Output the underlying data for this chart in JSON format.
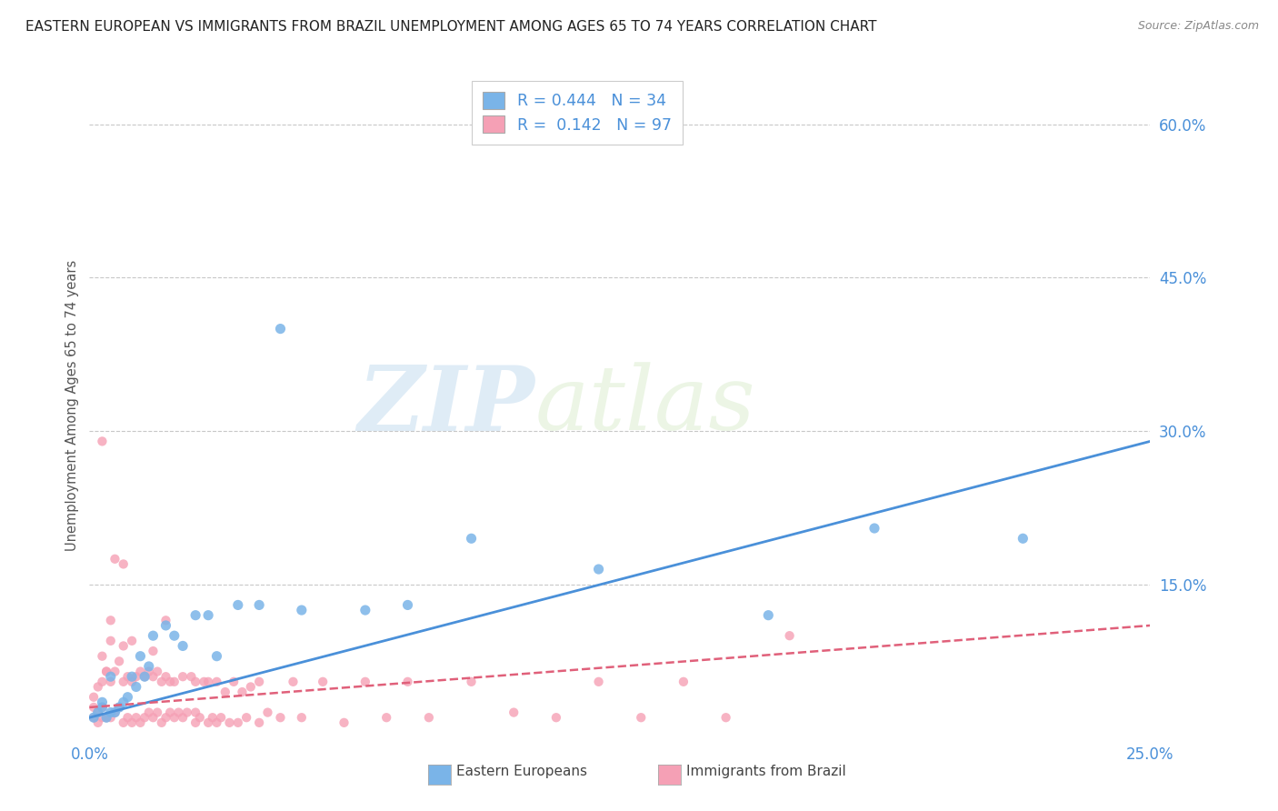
{
  "title": "EASTERN EUROPEAN VS IMMIGRANTS FROM BRAZIL UNEMPLOYMENT AMONG AGES 65 TO 74 YEARS CORRELATION CHART",
  "source": "Source: ZipAtlas.com",
  "ylabel": "Unemployment Among Ages 65 to 74 years",
  "xlim": [
    0.0,
    0.25
  ],
  "ylim": [
    0.0,
    0.65
  ],
  "xticklabels": [
    "0.0%",
    "25.0%"
  ],
  "yticklabels": [
    "15.0%",
    "30.0%",
    "45.0%",
    "60.0%"
  ],
  "ytick_positions": [
    0.15,
    0.3,
    0.45,
    0.6
  ],
  "grid_color": "#c8c8c8",
  "background_color": "#ffffff",
  "watermark_lines": [
    "ZIP",
    "atlas"
  ],
  "blue_color": "#7ab4e8",
  "blue_line_color": "#4a90d9",
  "pink_color": "#f5a0b5",
  "pink_line_color": "#e0607a",
  "tick_color": "#4a90d9",
  "title_color": "#222222",
  "source_color": "#888888",
  "R_blue": 0.444,
  "N_blue": 34,
  "R_pink": 0.142,
  "N_pink": 97,
  "blue_x": [
    0.001,
    0.002,
    0.003,
    0.003,
    0.004,
    0.005,
    0.005,
    0.006,
    0.007,
    0.008,
    0.009,
    0.01,
    0.011,
    0.012,
    0.013,
    0.014,
    0.015,
    0.018,
    0.02,
    0.022,
    0.025,
    0.028,
    0.03,
    0.035,
    0.04,
    0.045,
    0.05,
    0.065,
    0.075,
    0.09,
    0.12,
    0.16,
    0.185,
    0.22
  ],
  "blue_y": [
    0.02,
    0.025,
    0.03,
    0.035,
    0.02,
    0.025,
    0.06,
    0.025,
    0.03,
    0.035,
    0.04,
    0.06,
    0.05,
    0.08,
    0.06,
    0.07,
    0.1,
    0.11,
    0.1,
    0.09,
    0.12,
    0.12,
    0.08,
    0.13,
    0.13,
    0.4,
    0.125,
    0.125,
    0.13,
    0.195,
    0.165,
    0.12,
    0.205,
    0.195
  ],
  "pink_x": [
    0.001,
    0.001,
    0.001,
    0.002,
    0.002,
    0.002,
    0.003,
    0.003,
    0.003,
    0.003,
    0.004,
    0.004,
    0.005,
    0.005,
    0.005,
    0.006,
    0.006,
    0.006,
    0.007,
    0.007,
    0.008,
    0.008,
    0.008,
    0.009,
    0.009,
    0.01,
    0.01,
    0.01,
    0.011,
    0.011,
    0.012,
    0.012,
    0.013,
    0.013,
    0.014,
    0.014,
    0.015,
    0.015,
    0.016,
    0.016,
    0.017,
    0.017,
    0.018,
    0.018,
    0.019,
    0.019,
    0.02,
    0.02,
    0.021,
    0.022,
    0.022,
    0.023,
    0.024,
    0.025,
    0.025,
    0.026,
    0.027,
    0.028,
    0.028,
    0.029,
    0.03,
    0.03,
    0.031,
    0.032,
    0.033,
    0.034,
    0.035,
    0.036,
    0.037,
    0.038,
    0.04,
    0.04,
    0.042,
    0.045,
    0.048,
    0.05,
    0.055,
    0.06,
    0.065,
    0.07,
    0.075,
    0.08,
    0.09,
    0.1,
    0.11,
    0.12,
    0.13,
    0.14,
    0.15,
    0.165,
    0.003,
    0.004,
    0.005,
    0.008,
    0.015,
    0.018,
    0.025
  ],
  "pink_y": [
    0.02,
    0.03,
    0.04,
    0.015,
    0.025,
    0.05,
    0.02,
    0.03,
    0.055,
    0.08,
    0.02,
    0.065,
    0.02,
    0.055,
    0.095,
    0.025,
    0.065,
    0.175,
    0.03,
    0.075,
    0.015,
    0.055,
    0.09,
    0.02,
    0.06,
    0.015,
    0.055,
    0.095,
    0.02,
    0.06,
    0.015,
    0.065,
    0.02,
    0.06,
    0.025,
    0.065,
    0.02,
    0.06,
    0.025,
    0.065,
    0.015,
    0.055,
    0.02,
    0.06,
    0.025,
    0.055,
    0.02,
    0.055,
    0.025,
    0.02,
    0.06,
    0.025,
    0.06,
    0.015,
    0.055,
    0.02,
    0.055,
    0.015,
    0.055,
    0.02,
    0.015,
    0.055,
    0.02,
    0.045,
    0.015,
    0.055,
    0.015,
    0.045,
    0.02,
    0.05,
    0.015,
    0.055,
    0.025,
    0.02,
    0.055,
    0.02,
    0.055,
    0.015,
    0.055,
    0.02,
    0.055,
    0.02,
    0.055,
    0.025,
    0.02,
    0.055,
    0.02,
    0.055,
    0.02,
    0.1,
    0.29,
    0.065,
    0.115,
    0.17,
    0.085,
    0.115,
    0.025
  ],
  "blue_line_x0": 0.0,
  "blue_line_y0": 0.02,
  "blue_line_x1": 0.25,
  "blue_line_y1": 0.29,
  "pink_line_x0": 0.0,
  "pink_line_y0": 0.03,
  "pink_line_x1": 0.25,
  "pink_line_y1": 0.11
}
